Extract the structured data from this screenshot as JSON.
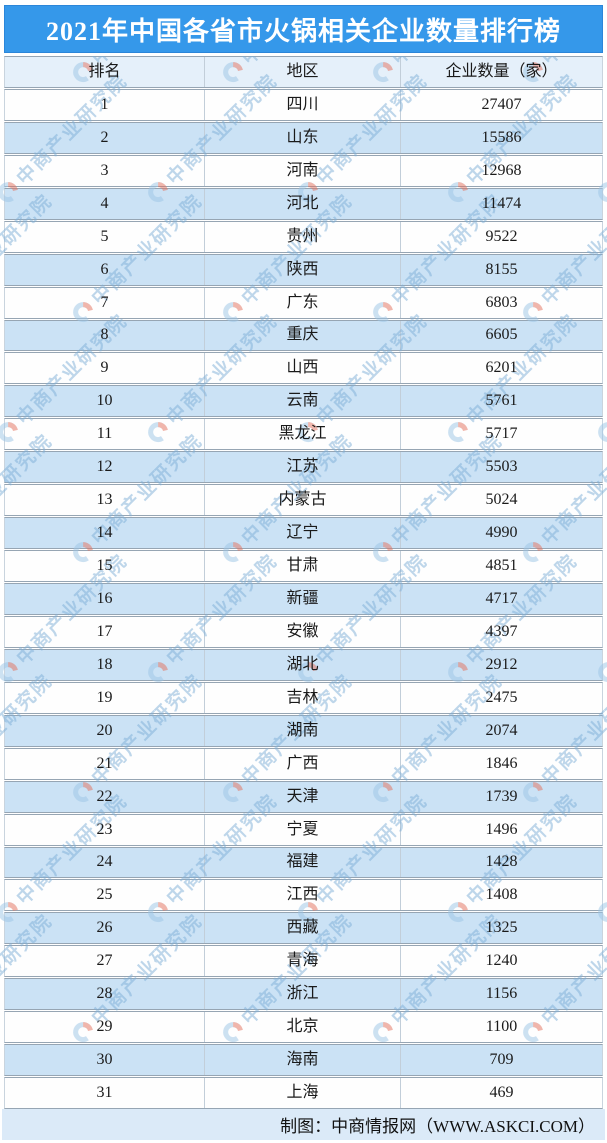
{
  "chart_data": {
    "type": "table",
    "title": "2021年中国各省市火锅相关企业数量排行榜",
    "columns": [
      "排名",
      "地区",
      "企业数量（家）"
    ],
    "rows": [
      [
        1,
        "四川",
        27407
      ],
      [
        2,
        "山东",
        15586
      ],
      [
        3,
        "河南",
        12968
      ],
      [
        4,
        "河北",
        11474
      ],
      [
        5,
        "贵州",
        9522
      ],
      [
        6,
        "陕西",
        8155
      ],
      [
        7,
        "广东",
        6803
      ],
      [
        8,
        "重庆",
        6605
      ],
      [
        9,
        "山西",
        6201
      ],
      [
        10,
        "云南",
        5761
      ],
      [
        11,
        "黑龙江",
        5717
      ],
      [
        12,
        "江苏",
        5503
      ],
      [
        13,
        "内蒙古",
        5024
      ],
      [
        14,
        "辽宁",
        4990
      ],
      [
        15,
        "甘肃",
        4851
      ],
      [
        16,
        "新疆",
        4717
      ],
      [
        17,
        "安徽",
        4397
      ],
      [
        18,
        "湖北",
        2912
      ],
      [
        19,
        "吉林",
        2475
      ],
      [
        20,
        "湖南",
        2074
      ],
      [
        21,
        "广西",
        1846
      ],
      [
        22,
        "天津",
        1739
      ],
      [
        23,
        "宁夏",
        1496
      ],
      [
        24,
        "福建",
        1428
      ],
      [
        25,
        "江西",
        1408
      ],
      [
        26,
        "西藏",
        1325
      ],
      [
        27,
        "青海",
        1240
      ],
      [
        28,
        "浙江",
        1156
      ],
      [
        29,
        "北京",
        1100
      ],
      [
        30,
        "海南",
        709
      ],
      [
        31,
        "上海",
        469
      ]
    ]
  },
  "footer": {
    "credit": "制图：中商情报网（WWW.ASKCI.COM）"
  },
  "watermark": {
    "text": "中商产业研究院",
    "logo": "pie-chart-logo"
  },
  "colors": {
    "title_bar_bg": "#3598EA",
    "title_text": "#FFFFFF",
    "header_row_bg": "#E5F0FA",
    "row_white_bg": "#FEFEFE",
    "row_alt_bg": "#CBE2F5",
    "footer_bg": "#DBEAF8",
    "row_border": "#96A5B3",
    "column_border": "#C2CED9",
    "watermark_blue": "#7FB0D8",
    "watermark_red": "#E4705C"
  }
}
